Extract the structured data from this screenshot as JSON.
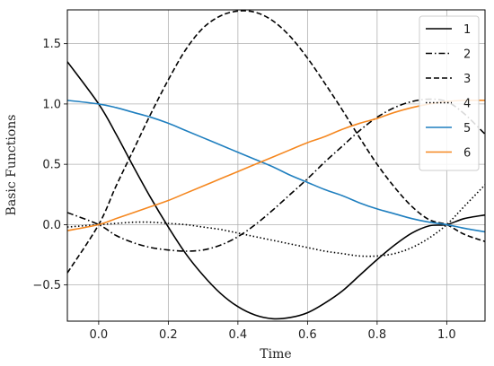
{
  "chart_data": {
    "type": "line",
    "xlabel": "Time",
    "ylabel": "Basic Functions",
    "xlim": [
      -0.09,
      1.11
    ],
    "ylim": [
      -0.8,
      1.78
    ],
    "xticks": [
      0.0,
      0.2,
      0.4,
      0.6,
      0.8,
      1.0
    ],
    "xtick_labels": [
      "0.0",
      "0.2",
      "0.4",
      "0.6",
      "0.8",
      "1.0"
    ],
    "yticks": [
      -0.5,
      0.0,
      0.5,
      1.0,
      1.5
    ],
    "ytick_labels": [
      "−0.5",
      "0.0",
      "0.5",
      "1.0",
      "1.5"
    ],
    "grid": true,
    "legend_position": "top-right",
    "series": [
      {
        "name": "1",
        "color": "#000000",
        "dash": "solid",
        "x": [
          -0.09,
          0.0,
          0.05,
          0.1,
          0.15,
          0.2,
          0.25,
          0.3,
          0.35,
          0.4,
          0.45,
          0.5,
          0.55,
          0.6,
          0.65,
          0.7,
          0.75,
          0.8,
          0.85,
          0.9,
          0.95,
          1.0,
          1.05,
          1.11
        ],
        "y": [
          1.35,
          1.0,
          0.75,
          0.48,
          0.22,
          -0.02,
          -0.24,
          -0.42,
          -0.57,
          -0.68,
          -0.75,
          -0.78,
          -0.77,
          -0.73,
          -0.65,
          -0.55,
          -0.42,
          -0.29,
          -0.17,
          -0.07,
          -0.01,
          0.0,
          0.05,
          0.08
        ]
      },
      {
        "name": "2",
        "color": "#000000",
        "dash": "dashdot",
        "x": [
          -0.09,
          0.0,
          0.05,
          0.1,
          0.15,
          0.2,
          0.25,
          0.3,
          0.35,
          0.4,
          0.45,
          0.5,
          0.55,
          0.6,
          0.65,
          0.7,
          0.75,
          0.8,
          0.85,
          0.9,
          0.95,
          1.0,
          1.05,
          1.11
        ],
        "y": [
          0.1,
          0.0,
          -0.09,
          -0.15,
          -0.19,
          -0.21,
          -0.22,
          -0.21,
          -0.17,
          -0.1,
          0.0,
          0.12,
          0.25,
          0.38,
          0.52,
          0.65,
          0.78,
          0.89,
          0.97,
          1.02,
          1.04,
          1.02,
          0.92,
          0.75
        ]
      },
      {
        "name": "3",
        "color": "#000000",
        "dash": "dashed",
        "x": [
          -0.09,
          0.0,
          0.05,
          0.1,
          0.15,
          0.2,
          0.25,
          0.3,
          0.35,
          0.4,
          0.45,
          0.5,
          0.55,
          0.6,
          0.65,
          0.7,
          0.75,
          0.8,
          0.85,
          0.9,
          0.95,
          1.0,
          1.05,
          1.11
        ],
        "y": [
          -0.4,
          0.0,
          0.32,
          0.62,
          0.92,
          1.2,
          1.45,
          1.63,
          1.73,
          1.77,
          1.76,
          1.69,
          1.56,
          1.38,
          1.17,
          0.95,
          0.72,
          0.5,
          0.31,
          0.15,
          0.04,
          0.0,
          -0.08,
          -0.14
        ]
      },
      {
        "name": "4",
        "color": "#000000",
        "dash": "dotted",
        "x": [
          -0.09,
          0.0,
          0.05,
          0.1,
          0.15,
          0.2,
          0.25,
          0.3,
          0.35,
          0.4,
          0.45,
          0.5,
          0.55,
          0.6,
          0.65,
          0.7,
          0.75,
          0.8,
          0.85,
          0.9,
          0.95,
          1.0,
          1.05,
          1.11
        ],
        "y": [
          -0.02,
          0.0,
          0.01,
          0.02,
          0.02,
          0.01,
          0.0,
          -0.02,
          -0.04,
          -0.07,
          -0.1,
          -0.13,
          -0.16,
          -0.19,
          -0.22,
          -0.24,
          -0.26,
          -0.26,
          -0.24,
          -0.19,
          -0.11,
          0.0,
          0.15,
          0.33
        ]
      },
      {
        "name": "5",
        "color": "#1f7fbf",
        "dash": "solid",
        "x": [
          -0.09,
          0.0,
          0.05,
          0.1,
          0.15,
          0.2,
          0.25,
          0.3,
          0.35,
          0.4,
          0.45,
          0.5,
          0.55,
          0.6,
          0.65,
          0.7,
          0.75,
          0.8,
          0.85,
          0.9,
          0.95,
          1.0,
          1.05,
          1.11
        ],
        "y": [
          1.03,
          1.0,
          0.97,
          0.93,
          0.89,
          0.84,
          0.78,
          0.72,
          0.66,
          0.6,
          0.54,
          0.48,
          0.41,
          0.35,
          0.29,
          0.24,
          0.18,
          0.13,
          0.09,
          0.05,
          0.02,
          0.0,
          -0.03,
          -0.06
        ]
      },
      {
        "name": "6",
        "color": "#f5871f",
        "dash": "solid",
        "x": [
          -0.09,
          0.0,
          0.05,
          0.1,
          0.15,
          0.2,
          0.25,
          0.3,
          0.35,
          0.4,
          0.45,
          0.5,
          0.55,
          0.6,
          0.65,
          0.7,
          0.75,
          0.8,
          0.85,
          0.9,
          0.95,
          1.0,
          1.05,
          1.11
        ],
        "y": [
          -0.05,
          0.0,
          0.05,
          0.1,
          0.15,
          0.2,
          0.26,
          0.32,
          0.38,
          0.44,
          0.5,
          0.56,
          0.62,
          0.68,
          0.73,
          0.79,
          0.84,
          0.88,
          0.93,
          0.97,
          1.0,
          1.02,
          1.03,
          1.03
        ]
      }
    ]
  }
}
